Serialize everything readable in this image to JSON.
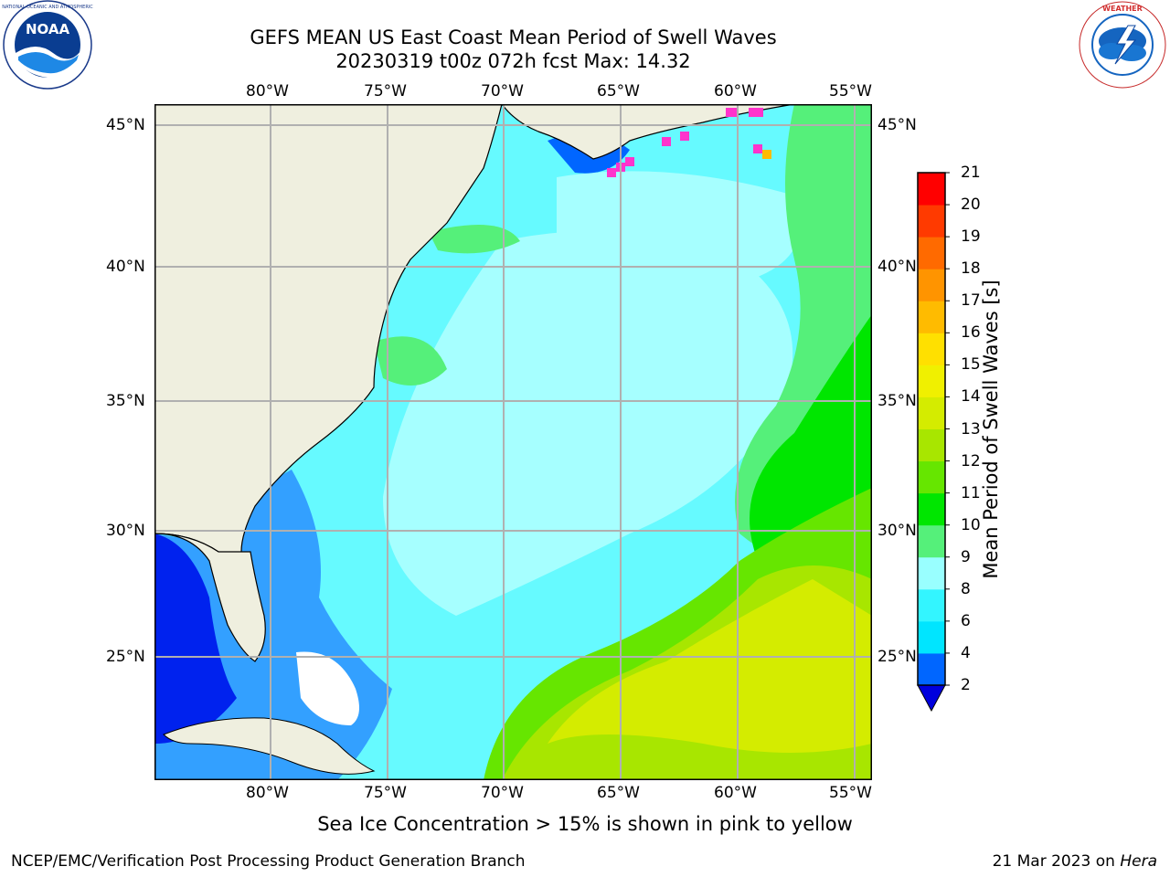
{
  "header": {
    "title_line1": "GEFS MEAN US East Coast Mean Period of Swell Waves",
    "title_line2": "20230319 t00z 072h fcst   Max: 14.32"
  },
  "logos": {
    "left": {
      "name": "noaa-logo",
      "text": "NOAA",
      "ring_text": "NATIONAL OCEANIC AND ATMOSPHERIC ADMINISTRATION · U.S. DEPARTMENT OF COMMERCE"
    },
    "right": {
      "name": "nws-logo",
      "ring_text": "NATIONAL WEATHER SERVICE"
    }
  },
  "map": {
    "lon_labels": [
      "80°W",
      "75°W",
      "70°W",
      "65°W",
      "60°W",
      "55°W"
    ],
    "lat_labels": [
      "45°N",
      "40°N",
      "35°N",
      "30°N",
      "25°N"
    ],
    "lon_range": [
      -85,
      -54.5
    ],
    "lat_range": [
      20.5,
      46
    ],
    "colors": {
      "land": "#efefdf",
      "grid": "#b0b0b0",
      "coast": "#000000"
    }
  },
  "colorbar": {
    "label": "Mean Period of Swell Waves [s]",
    "ticks": [
      "2",
      "4",
      "6",
      "8",
      "9",
      "10",
      "11",
      "12",
      "13",
      "14",
      "15",
      "16",
      "17",
      "18",
      "19",
      "20",
      "21"
    ],
    "colors": [
      "#0066ff",
      "#00e5ff",
      "#33f5ff",
      "#99ffff",
      "#55f07a",
      "#00e600",
      "#66e600",
      "#a8e600",
      "#d4ec00",
      "#f0f000",
      "#ffe000",
      "#ffbb00",
      "#ff9400",
      "#ff6a00",
      "#ff3a00",
      "#ff0000"
    ],
    "under_color": "#0000dd"
  },
  "notes": {
    "sea_ice": "Sea Ice Concentration > 15% is shown in pink to yellow"
  },
  "footer": {
    "left": "NCEP/EMC/Verification Post Processing Product Generation Branch",
    "right_date": "21 Mar 2023 on ",
    "right_machine": "Hera"
  }
}
